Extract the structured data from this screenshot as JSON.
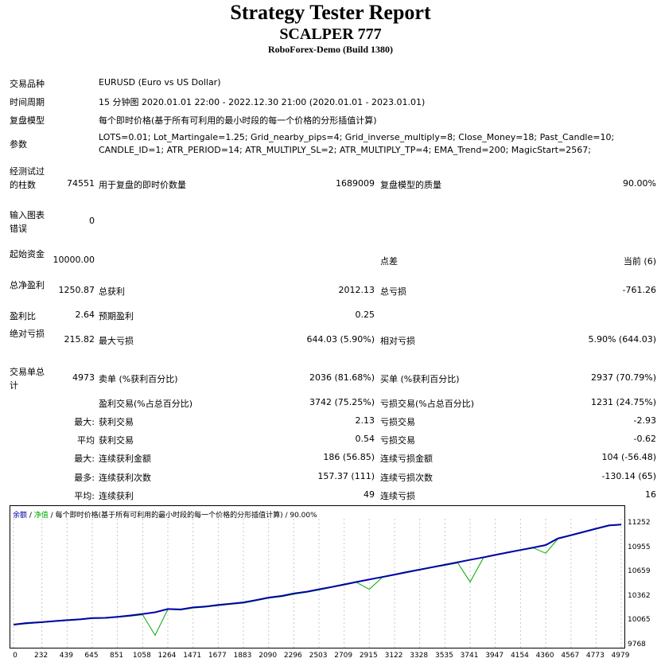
{
  "header": {
    "title": "Strategy Tester Report",
    "ea_name": "SCALPER 777",
    "server": "RoboForex-Demo (Build 1380)"
  },
  "settings": {
    "symbol_label": "交易品种",
    "symbol_value": "EURUSD (Euro vs US Dollar)",
    "period_label": "时间周期",
    "period_value": "15 分钟图 2020.01.01 22:00 - 2022.12.30 21:00 (2020.01.01 - 2023.01.01)",
    "model_label": "复盘模型",
    "model_value": "每个即时价格(基于所有可利用的最小时段的每一个价格的分形插值计算)",
    "params_label": "参数",
    "params_line1": "LOTS=0.01; Lot_Martingale=1.25; Grid_nearby_pips=4; Grid_inverse_multiply=8; Close_Money=18; Past_Candle=10;",
    "params_line2": "CANDLE_ID=1; ATR_PERIOD=14; ATR_MULTIPLY_SL=2; ATR_MULTIPLY_TP=4; EMA_Trend=200; MagicStart=2567;"
  },
  "stats": {
    "bars_label": "经测试过的柱数",
    "bars_value": "74551",
    "ticks_label": "用于复盘的即时价数量",
    "ticks_value": "1689009",
    "quality_label": "复盘模型的质量",
    "quality_value": "90.00%",
    "errors_label": "输入图表错误",
    "errors_value": "0",
    "deposit_label": "起始资金",
    "deposit_value": "10000.00",
    "spread_label": "点差",
    "spread_value": "当前 (6)",
    "net_label": "总净盈利",
    "net_value": "1250.87",
    "gross_profit_label": "总获利",
    "gross_profit_value": "2012.13",
    "gross_loss_label": "总亏损",
    "gross_loss_value": "-761.26",
    "pf_label": "盈利比",
    "pf_value": "2.64",
    "payoff_label": "预期盈利",
    "payoff_value": "0.25",
    "abs_dd_label": "绝对亏损",
    "abs_dd_value": "215.82",
    "max_dd_label": "最大亏损",
    "max_dd_value": "644.03 (5.90%)",
    "rel_dd_label": "相对亏损",
    "rel_dd_value": "5.90% (644.03)",
    "trades_label": "交易单总计",
    "trades_value": "4973",
    "short_label": "卖单 (%获利百分比)",
    "short_value": "2036 (81.68%)",
    "long_label": "买单 (%获利百分比)",
    "long_value": "2937 (70.79%)",
    "win_label": "盈利交易(%占总百分比)",
    "win_value": "3742 (75.25%)",
    "loss_label": "亏损交易(%占总百分比)",
    "loss_value": "1231 (24.75%)",
    "max_label": "最大:",
    "max_win_label": "获利交易",
    "max_win_value": "2.13",
    "max_loss_label": "亏损交易",
    "max_loss_value": "-2.93",
    "avg_label": "平均",
    "avg_win_label": "获利交易",
    "avg_win_value": "0.54",
    "avg_loss_label": "亏损交易",
    "avg_loss_value": "-0.62",
    "max2_label": "最大:",
    "max_cons_win_amt_label": "连续获利金额",
    "max_cons_win_amt_value": "186 (56.85)",
    "max_cons_loss_amt_label": "连续亏损金额",
    "max_cons_loss_amt_value": "104 (-56.48)",
    "most_label": "最多:",
    "max_cons_win_cnt_label": "连续获利次数",
    "max_cons_win_cnt_value": "157.37 (111)",
    "max_cons_loss_cnt_label": "连续亏损次数",
    "max_cons_loss_cnt_value": "-130.14 (65)",
    "avg2_label": "平均:",
    "avg_cons_win_label": "连续获利",
    "avg_cons_win_value": "49",
    "avg_cons_loss_label": "连续亏损",
    "avg_cons_loss_value": "16"
  },
  "colors": {
    "balance": "#0000aa",
    "equity": "#00aa00"
  },
  "chart_data": {
    "type": "line",
    "legend": [
      "余额",
      "净值"
    ],
    "legend_suffix": "每个即时价格(基于所有可利用的最小时段的每一个价格的分形插值计算) / 90.00%",
    "x_ticks": [
      "0",
      "232",
      "439",
      "645",
      "851",
      "1058",
      "1264",
      "1471",
      "1677",
      "1883",
      "2090",
      "2296",
      "2503",
      "2709",
      "2915",
      "3122",
      "3328",
      "3535",
      "3741",
      "3947",
      "4154",
      "4360",
      "4567",
      "4773",
      "4979"
    ],
    "y_ticks": [
      "11252",
      "10955",
      "10659",
      "10362",
      "10065",
      "9768"
    ],
    "xlim": [
      0,
      4979
    ],
    "ylim": [
      9768,
      11320
    ],
    "series": [
      {
        "name": "余额",
        "x": [
          0,
          100,
          232,
          350,
          439,
          550,
          645,
          750,
          851,
          950,
          1058,
          1160,
          1264,
          1370,
          1471,
          1570,
          1677,
          1780,
          1883,
          1990,
          2090,
          2200,
          2296,
          2400,
          2503,
          2610,
          2709,
          2810,
          2915,
          3020,
          3122,
          3220,
          3328,
          3430,
          3535,
          3640,
          3741,
          3850,
          3947,
          4050,
          4154,
          4260,
          4360,
          4460,
          4567,
          4670,
          4773,
          4880,
          4979
        ],
        "y": [
          10030,
          10048,
          10060,
          10075,
          10085,
          10095,
          10110,
          10112,
          10125,
          10140,
          10160,
          10180,
          10220,
          10215,
          10240,
          10250,
          10270,
          10285,
          10300,
          10330,
          10360,
          10380,
          10410,
          10430,
          10460,
          10490,
          10520,
          10550,
          10580,
          10610,
          10640,
          10670,
          10700,
          10730,
          10760,
          10790,
          10820,
          10850,
          10880,
          10910,
          10940,
          10970,
          11000,
          11080,
          11120,
          11160,
          11200,
          11240,
          11250
        ]
      },
      {
        "name": "净值",
        "x": [
          0,
          100,
          232,
          350,
          439,
          550,
          645,
          750,
          851,
          950,
          1058,
          1160,
          1264,
          1370,
          1471,
          1570,
          1677,
          1780,
          1883,
          1990,
          2090,
          2200,
          2296,
          2400,
          2503,
          2610,
          2709,
          2810,
          2915,
          3020,
          3122,
          3220,
          3328,
          3430,
          3535,
          3640,
          3741,
          3850,
          3947,
          4050,
          4154,
          4260,
          4360,
          4460,
          4567,
          4670,
          4773,
          4880,
          4979
        ],
        "y": [
          10025,
          10040,
          10055,
          10070,
          10078,
          10090,
          10105,
          10108,
          10120,
          10132,
          10150,
          9900,
          10215,
          10208,
          10232,
          10243,
          10262,
          10278,
          10292,
          10322,
          10352,
          10372,
          10400,
          10424,
          10452,
          10484,
          10512,
          10545,
          10460,
          10605,
          10635,
          10663,
          10695,
          10724,
          10752,
          10782,
          10550,
          10845,
          10875,
          10905,
          10935,
          10965,
          10900,
          11075,
          11115,
          11155,
          11195,
          11235,
          11245
        ]
      }
    ]
  }
}
